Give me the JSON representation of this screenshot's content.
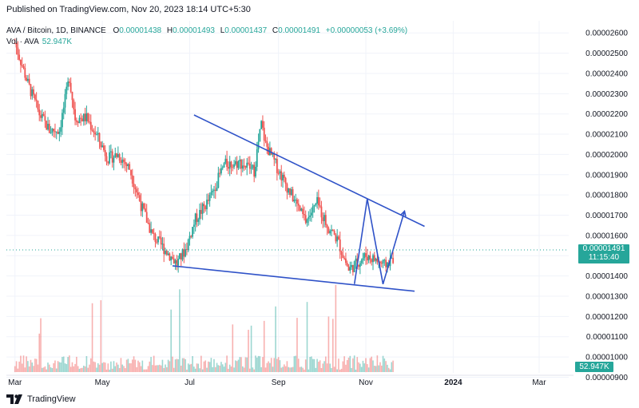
{
  "header": {
    "published": "Published on TradingView.com, Nov 20, 2023 18:14 UTC+5:30"
  },
  "legend": {
    "symbol": "AVA / Bitcoin, 1D, BINANCE",
    "open_key": "O",
    "open": "0.00001438",
    "high_key": "H",
    "high": "0.00001493",
    "low_key": "L",
    "low": "0.00001437",
    "close_key": "C",
    "close": "0.00001491",
    "change": "+0.00000053 (+3.69%)",
    "volume_label": "Vol · AVA",
    "volume_value": "52.947K"
  },
  "price_tag": {
    "price": "0.00001491",
    "countdown": "11:15:40"
  },
  "volume_tag": "52.947K",
  "footer": {
    "logo_text": "TradingView"
  },
  "colors": {
    "up": "#26a69a",
    "down": "#ef5350",
    "trendline": "#2f52c8",
    "grid": "#f0f3fa"
  },
  "chart_data": {
    "type": "candlestick",
    "pair": "AVA / Bitcoin",
    "interval": "1D",
    "exchange": "BINANCE",
    "y_tick_labels": [
      "0.00002600",
      "0.00002500",
      "0.00002400",
      "0.00002300",
      "0.00002200",
      "0.00002100",
      "0.00002000",
      "0.00001900",
      "0.00001800",
      "0.00001700",
      "0.00001600",
      "0.00001500",
      "0.00001400",
      "0.00001300",
      "0.00001200",
      "0.00001100",
      "0.00001000",
      "0.00000900"
    ],
    "y_ticks": [
      2.6e-05,
      2.5e-05,
      2.4e-05,
      2.3e-05,
      2.2e-05,
      2.1e-05,
      2e-05,
      1.9e-05,
      1.8e-05,
      1.7e-05,
      1.6e-05,
      1.5e-05,
      1.4e-05,
      1.3e-05,
      1.2e-05,
      1.1e-05,
      1e-05,
      9e-06
    ],
    "x_tick_labels": [
      "Mar",
      "May",
      "Jul",
      "Sep",
      "Nov",
      "2024",
      "Mar"
    ],
    "x_tick_dates": [
      "2023-03-01",
      "2023-05-01",
      "2023-07-01",
      "2023-09-01",
      "2023-11-01",
      "2024-01-01",
      "2024-03-01"
    ],
    "x_range": [
      "2023-02-23",
      "2024-03-25"
    ],
    "y_range": [
      8.9e-06,
      2.66e-05
    ],
    "grid": true,
    "last_price": 1.491e-05,
    "price_series_approx": [
      [
        "2023-03-01",
        2.55e-05
      ],
      [
        "2023-03-10",
        2.35e-05
      ],
      [
        "2023-03-18",
        2.2e-05
      ],
      [
        "2023-03-25",
        2.12e-05
      ],
      [
        "2023-04-01",
        2.12e-05
      ],
      [
        "2023-04-08",
        2.38e-05
      ],
      [
        "2023-04-12",
        2.18e-05
      ],
      [
        "2023-04-20",
        2.18e-05
      ],
      [
        "2023-04-28",
        2.08e-05
      ],
      [
        "2023-05-05",
        1.98e-05
      ],
      [
        "2023-05-12",
        2e-05
      ],
      [
        "2023-05-20",
        1.93e-05
      ],
      [
        "2023-05-28",
        1.75e-05
      ],
      [
        "2023-06-05",
        1.6e-05
      ],
      [
        "2023-06-15",
        1.52e-05
      ],
      [
        "2023-06-22",
        1.46e-05
      ],
      [
        "2023-06-28",
        1.53e-05
      ],
      [
        "2023-07-05",
        1.68e-05
      ],
      [
        "2023-07-15",
        1.78e-05
      ],
      [
        "2023-07-25",
        1.95e-05
      ],
      [
        "2023-08-05",
        1.96e-05
      ],
      [
        "2023-08-15",
        1.92e-05
      ],
      [
        "2023-08-20",
        2.15e-05
      ],
      [
        "2023-08-23",
        2.05e-05
      ],
      [
        "2023-08-30",
        1.95e-05
      ],
      [
        "2023-09-10",
        1.8e-05
      ],
      [
        "2023-09-20",
        1.67e-05
      ],
      [
        "2023-09-28",
        1.76e-05
      ],
      [
        "2023-10-05",
        1.65e-05
      ],
      [
        "2023-10-12",
        1.58e-05
      ],
      [
        "2023-10-20",
        1.43e-05
      ],
      [
        "2023-10-25",
        1.46e-05
      ],
      [
        "2023-11-01",
        1.5e-05
      ],
      [
        "2023-11-08",
        1.48e-05
      ],
      [
        "2023-11-14",
        1.45e-05
      ],
      [
        "2023-11-20",
        1.49e-05
      ]
    ],
    "trendlines": [
      {
        "name": "upper",
        "points": [
          [
            "2023-07-04",
            2.195e-05
          ],
          [
            "2023-12-12",
            1.645e-05
          ]
        ]
      },
      {
        "name": "lower",
        "points": [
          [
            "2023-06-19",
            1.45e-05
          ],
          [
            "2023-12-05",
            1.325e-05
          ]
        ]
      },
      {
        "name": "projection",
        "points": [
          [
            "2023-10-24",
            1.36e-05
          ],
          [
            "2023-11-02",
            1.78e-05
          ],
          [
            "2023-11-13",
            1.36e-05
          ],
          [
            "2023-11-28",
            1.72e-05
          ]
        ]
      }
    ]
  }
}
